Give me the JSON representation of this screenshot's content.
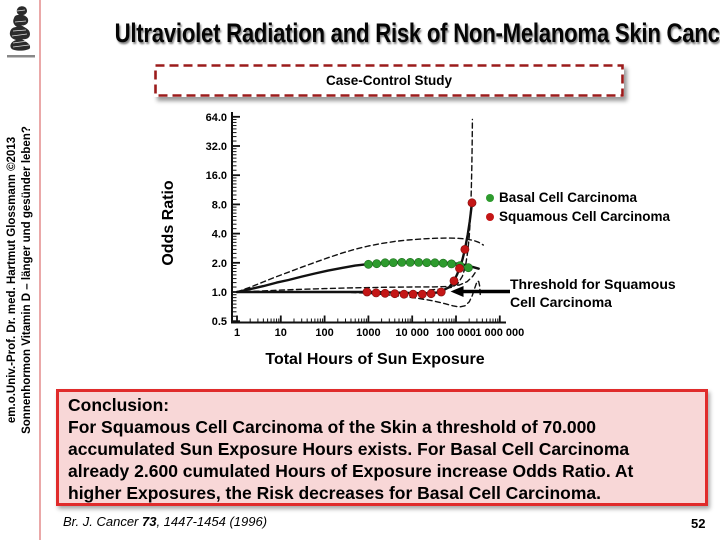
{
  "slide": {
    "title": "Ultraviolet Radiation and Risk of Non-Melanoma Skin Cancer",
    "page_number": "52",
    "sidebar_credit_line1": "em.o.Univ.-Prof. Dr. med. Hartmut Glossmann ©2013",
    "sidebar_credit_line2": "Sonnenhormon Vitamin D – länger und gesünder leben?",
    "citation": {
      "prefix": "Br. J. Cancer ",
      "volume": "73",
      "suffix": ", 1447-1454 (1996)"
    }
  },
  "study_label": "Case-Control Study",
  "conclusion": {
    "heading": "Conclusion:",
    "lines": [
      "For Squamous Cell Carcinoma of the Skin a threshold of 70.000",
      "accumulated Sun Exposure Hours exists. For Basal Cell Carcinoma",
      "already 2.600 cumulated Hours of Exposure increase Odds Ratio. At",
      "higher Exposures, the Risk decreases for Basal Cell Carcinoma."
    ]
  },
  "colors": {
    "accent_red": "#e02b2b",
    "dark_red_dash": "#9b1b1b",
    "pink_bg": "#f8d7d7",
    "pink_line": "#eaa8a8",
    "basal_green": "#2e9b2e",
    "squamous_red": "#c41616"
  },
  "chart_data": {
    "type": "line",
    "title": "",
    "xlabel": "Total Hours of Sun Exposure",
    "ylabel": "Odds Ratio",
    "x_scale": "log10",
    "y_scale": "log2",
    "xlim": [
      1,
      1000000
    ],
    "ylim": [
      0.5,
      64
    ],
    "grid": false,
    "legend_position": "right",
    "x_ticks": [
      "1",
      "10",
      "100",
      "1000",
      "10 000",
      "100 000",
      "1 000 000"
    ],
    "x_tick_values": [
      1,
      10,
      100,
      1000,
      10000,
      100000,
      1000000
    ],
    "y_ticks": [
      "64.0",
      "32.0",
      "16.0",
      "8.0",
      "4.0",
      "2.0",
      "1.0",
      "0.5"
    ],
    "y_tick_values": [
      64,
      32,
      16,
      8,
      4,
      2,
      1,
      0.5
    ],
    "legend": [
      {
        "label": "Basal Cell Carcinoma",
        "color": "#2e9b2e"
      },
      {
        "label": "Squamous Cell Carcinoma",
        "color": "#c41616"
      }
    ],
    "annotation": {
      "text_line1": "Threshold for Squamous",
      "text_line2": "Cell Carcinoma",
      "points_to": {
        "hours": 75000,
        "odds_ratio": 1.0
      }
    },
    "series": [
      {
        "name": "Basal CI upper",
        "style": "dashed",
        "points": [
          [
            1,
            1.0
          ],
          [
            2,
            1.12
          ],
          [
            4,
            1.27
          ],
          [
            8,
            1.44
          ],
          [
            15,
            1.6
          ],
          [
            30,
            1.8
          ],
          [
            60,
            2.02
          ],
          [
            120,
            2.26
          ],
          [
            250,
            2.52
          ],
          [
            500,
            2.76
          ],
          [
            1000,
            2.98
          ],
          [
            2000,
            3.16
          ],
          [
            4000,
            3.32
          ],
          [
            8000,
            3.44
          ],
          [
            16000,
            3.52
          ],
          [
            32000,
            3.58
          ],
          [
            64000,
            3.6
          ],
          [
            110000,
            3.58
          ],
          [
            170000,
            3.52
          ],
          [
            250000,
            3.4
          ],
          [
            330000,
            3.25
          ],
          [
            420000,
            3.05
          ]
        ]
      },
      {
        "name": "Basal CI lower",
        "style": "dashed",
        "points": [
          [
            1,
            1.0
          ],
          [
            3,
            1.02
          ],
          [
            10,
            1.045
          ],
          [
            30,
            1.065
          ],
          [
            100,
            1.085
          ],
          [
            300,
            1.1
          ],
          [
            1000,
            1.11
          ],
          [
            3000,
            1.12
          ],
          [
            10000,
            1.125
          ],
          [
            30000,
            1.13
          ],
          [
            70000,
            1.14
          ],
          [
            120000,
            1.18
          ],
          [
            180000,
            1.28
          ],
          [
            240000,
            1.45
          ],
          [
            290000,
            1.65
          ]
        ]
      },
      {
        "name": "Squamous CI upper",
        "style": "dashed",
        "points": [
          [
            25000,
            1.05
          ],
          [
            50000,
            1.07
          ],
          [
            80000,
            1.12
          ],
          [
            110000,
            1.22
          ],
          [
            140000,
            1.45
          ],
          [
            165000,
            1.85
          ],
          [
            185000,
            2.6
          ],
          [
            200000,
            3.7
          ],
          [
            211000,
            5.4
          ],
          [
            219000,
            8.0
          ],
          [
            225000,
            12.5
          ],
          [
            229500,
            19
          ],
          [
            233000,
            30
          ],
          [
            235500,
            45
          ],
          [
            237000,
            60
          ]
        ]
      },
      {
        "name": "Squamous CI lower",
        "style": "dashed",
        "points": [
          [
            400,
            0.99
          ],
          [
            1000,
            0.97
          ],
          [
            2500,
            0.94
          ],
          [
            6000,
            0.9
          ],
          [
            14000,
            0.86
          ],
          [
            30000,
            0.81
          ],
          [
            55000,
            0.76
          ],
          [
            85000,
            0.72
          ],
          [
            120000,
            0.7
          ],
          [
            160000,
            0.72
          ],
          [
            200000,
            0.79
          ],
          [
            235000,
            0.92
          ],
          [
            265000,
            1.08
          ],
          [
            290000,
            1.22
          ],
          [
            312000,
            1.3
          ],
          [
            330000,
            1.28
          ],
          [
            345000,
            1.16
          ],
          [
            355000,
            1.0
          ],
          [
            360000,
            0.88
          ]
        ]
      },
      {
        "name": "Basal fit",
        "style": "solid",
        "points": [
          [
            1,
            1.0
          ],
          [
            2,
            1.07
          ],
          [
            4,
            1.15
          ],
          [
            8,
            1.25
          ],
          [
            15,
            1.33
          ],
          [
            30,
            1.44
          ],
          [
            60,
            1.55
          ],
          [
            120,
            1.66
          ],
          [
            250,
            1.77
          ],
          [
            500,
            1.87
          ],
          [
            1000,
            1.94
          ],
          [
            2000,
            1.99
          ],
          [
            4000,
            2.01
          ],
          [
            8000,
            2.02
          ],
          [
            16000,
            2.02
          ],
          [
            32000,
            2.02
          ],
          [
            64000,
            2.0
          ],
          [
            110000,
            1.96
          ],
          [
            170000,
            1.89
          ],
          [
            250000,
            1.8
          ],
          [
            330000,
            1.74
          ]
        ]
      },
      {
        "name": "Squamous fit",
        "style": "solid",
        "points": [
          [
            1,
            1.0
          ],
          [
            10,
            1.0
          ],
          [
            100,
            1.0
          ],
          [
            1000,
            1.0
          ],
          [
            3000,
            0.99
          ],
          [
            8000,
            0.98
          ],
          [
            20000,
            0.97
          ],
          [
            40000,
            0.99
          ],
          [
            46000,
            1.02
          ],
          [
            70000,
            1.12
          ],
          [
            90000,
            1.3
          ],
          [
            105000,
            1.5
          ],
          [
            120000,
            1.75
          ],
          [
            140000,
            2.15
          ],
          [
            160000,
            2.75
          ],
          [
            185000,
            3.9
          ],
          [
            205000,
            5.3
          ],
          [
            220000,
            6.8
          ],
          [
            232000,
            8.3
          ]
        ]
      },
      {
        "name": "Basal Cell Carcinoma",
        "style": "dots",
        "color": "#2e9b2e",
        "edge": "#1d6b1d",
        "points": [
          [
            1000,
            1.93
          ],
          [
            1550,
            1.96
          ],
          [
            2400,
            2.0
          ],
          [
            3700,
            2.01
          ],
          [
            5800,
            2.02
          ],
          [
            9000,
            2.02
          ],
          [
            14000,
            2.02
          ],
          [
            21500,
            2.01
          ],
          [
            33000,
            2.0
          ],
          [
            51000,
            1.98
          ],
          [
            79000,
            1.95
          ],
          [
            123000,
            1.87
          ],
          [
            192000,
            1.78
          ]
        ]
      },
      {
        "name": "Squamous Cell Carcinoma",
        "style": "dots",
        "color": "#c41616",
        "edge": "#7e0d0d",
        "points": [
          [
            930,
            1.0
          ],
          [
            1500,
            0.98
          ],
          [
            2400,
            0.97
          ],
          [
            4000,
            0.96
          ],
          [
            6500,
            0.95
          ],
          [
            10500,
            0.95
          ],
          [
            17000,
            0.95
          ],
          [
            27000,
            0.96
          ],
          [
            46000,
            1.0
          ],
          [
            90000,
            1.3
          ],
          [
            120000,
            1.75
          ],
          [
            160000,
            2.75
          ],
          [
            232000,
            8.3
          ]
        ]
      }
    ]
  }
}
